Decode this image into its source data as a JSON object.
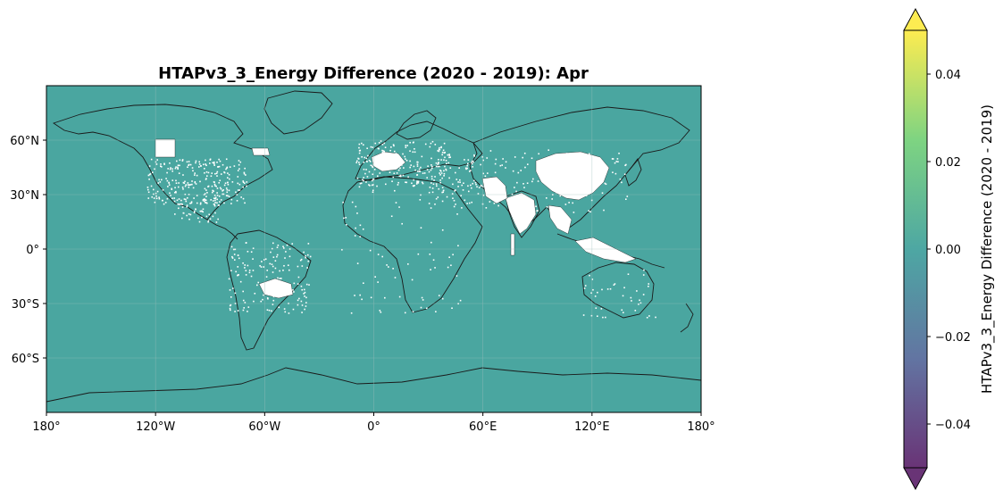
{
  "title": "HTAPv3_3_Energy Difference (2020 - 2019): Apr",
  "map": {
    "ocean_color": "#4aa6a0",
    "land_nodata_color": "#ffffff",
    "coastline_color": "#1a1a1a",
    "gridlines": true,
    "x_ticks": [
      "180°",
      "120°W",
      "60°W",
      "0°",
      "60°E",
      "120°E",
      "180°"
    ],
    "y_ticks": [
      "60°N",
      "30°N",
      "0°",
      "30°S",
      "60°S"
    ],
    "x_tick_values": [
      -180,
      -120,
      -60,
      0,
      60,
      120,
      180
    ],
    "y_tick_values": [
      60,
      30,
      0,
      -30,
      -60
    ],
    "lon_range": [
      -180,
      180
    ],
    "lat_range": [
      -90,
      90
    ]
  },
  "colorbar": {
    "label": "HTAPv3_3_Energy Difference (2020 - 2019)",
    "ticks": [
      "0.04",
      "0.02",
      "0.00",
      "−0.02",
      "−0.04"
    ],
    "tick_values": [
      0.04,
      0.02,
      0.0,
      -0.02,
      -0.04
    ],
    "range": [
      -0.05,
      0.05
    ],
    "extend": "both",
    "colormap": "viridis",
    "colors": [
      "#440154",
      "#3b528b",
      "#21918c",
      "#5ec962",
      "#fde725"
    ]
  }
}
